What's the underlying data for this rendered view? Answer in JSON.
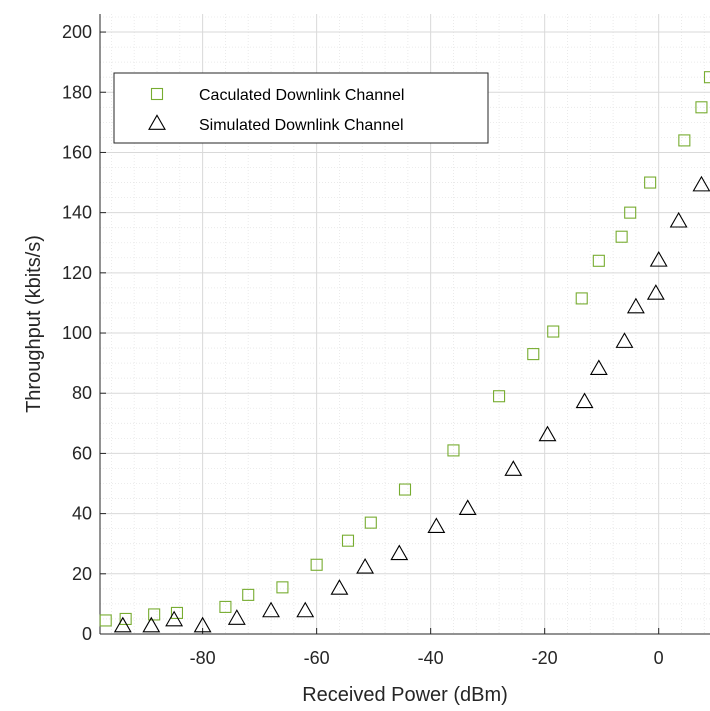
{
  "chart_data": {
    "type": "scatter",
    "xlabel": "Received Power (dBm)",
    "ylabel": "Throughput (kbits/s)",
    "xlim": [
      -98,
      9
    ],
    "ylim": [
      0,
      206
    ],
    "xticks": [
      -80,
      -60,
      -40,
      -20,
      0
    ],
    "yticks": [
      0,
      20,
      40,
      60,
      80,
      100,
      120,
      140,
      160,
      180,
      200
    ],
    "grid": true,
    "minor_grid": true,
    "legend_position": "upper-left",
    "series": [
      {
        "name": "Caculated Downlink Channel",
        "marker": "square",
        "color": "#77AC30",
        "x": [
          -97,
          -93.5,
          -88.5,
          -84.5,
          -76,
          -72,
          -66,
          -60,
          -54.5,
          -50.5,
          -44.5,
          -36,
          -28,
          -22,
          -18.5,
          -13.5,
          -10.5,
          -6.5,
          -5,
          -1.5,
          4.5,
          7.5,
          9
        ],
        "y": [
          4.5,
          5,
          6.5,
          7,
          9,
          13,
          15.5,
          23,
          31,
          37,
          48,
          61,
          79,
          93,
          100.5,
          111.5,
          124,
          132,
          140,
          150,
          164,
          175,
          185
        ]
      },
      {
        "name": "Simulated Downlink Channel",
        "marker": "triangle",
        "color": "#000000",
        "x": [
          -94,
          -89,
          -85,
          -80,
          -74,
          -68,
          -62,
          -56,
          -51.5,
          -45.5,
          -39,
          -33.5,
          -25.5,
          -19.5,
          -13,
          -10.5,
          -6,
          -4,
          -0.5,
          0,
          3.5,
          7.5
        ],
        "y": [
          2.5,
          2.5,
          4.5,
          2.5,
          5,
          7.5,
          7.5,
          15,
          22,
          26.5,
          35.5,
          41.5,
          54.5,
          66,
          77,
          88,
          97,
          108.5,
          113,
          124,
          137,
          149
        ]
      }
    ]
  },
  "colors": {
    "axis": "#262626",
    "grid_major": "#d9d9d9",
    "grid_minor": "#e6e6e6"
  }
}
